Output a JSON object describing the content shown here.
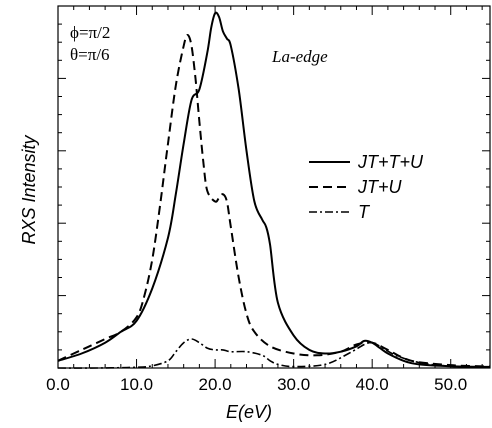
{
  "chart_data": {
    "type": "line",
    "xlabel": "E(eV)",
    "ylabel": "RXS Intensity",
    "xlim": [
      0,
      55
    ],
    "ylim": [
      0,
      1.0
    ],
    "x_tick_labels": [
      "0.0",
      "10.0",
      "20.0",
      "30.0",
      "40.0",
      "50.0"
    ],
    "x_ticks": [
      0,
      10,
      20,
      30,
      40,
      50
    ],
    "y_tick_labels_shown": false,
    "grid": false,
    "legend_position": "right",
    "annotations": {
      "phi": "ϕ=π/2",
      "theta": "θ=π/6",
      "edge": "La-edge"
    },
    "series": [
      {
        "name": "JT+T+U",
        "style": "solid",
        "x": [
          0,
          3,
          6,
          8,
          10,
          12,
          14,
          15,
          16,
          17,
          18,
          19,
          19.5,
          20,
          20.5,
          21,
          21.5,
          22,
          23,
          24,
          25,
          26,
          26.5,
          27,
          28,
          30,
          32,
          34,
          36,
          38,
          39,
          40,
          41,
          42,
          44,
          46,
          50,
          55
        ],
        "y": [
          0.02,
          0.04,
          0.07,
          0.1,
          0.13,
          0.22,
          0.36,
          0.48,
          0.62,
          0.74,
          0.77,
          0.87,
          0.94,
          0.98,
          0.97,
          0.93,
          0.91,
          0.89,
          0.77,
          0.6,
          0.46,
          0.41,
          0.39,
          0.34,
          0.18,
          0.09,
          0.05,
          0.04,
          0.045,
          0.06,
          0.075,
          0.07,
          0.055,
          0.04,
          0.02,
          0.01,
          0.005,
          0.003
        ]
      },
      {
        "name": "JT+U",
        "style": "dashed",
        "x": [
          0,
          3,
          6,
          8,
          10,
          11,
          12,
          13,
          14,
          15,
          16,
          16.5,
          17,
          17.5,
          18,
          18.5,
          19,
          20,
          20.5,
          21,
          21.5,
          22,
          23,
          24,
          25,
          27,
          30,
          33,
          36,
          38,
          40,
          42,
          45,
          50,
          55
        ],
        "y": [
          0.02,
          0.05,
          0.08,
          0.1,
          0.14,
          0.2,
          0.3,
          0.45,
          0.62,
          0.78,
          0.89,
          0.92,
          0.89,
          0.8,
          0.68,
          0.57,
          0.49,
          0.46,
          0.47,
          0.48,
          0.46,
          0.39,
          0.25,
          0.15,
          0.1,
          0.06,
          0.04,
          0.035,
          0.045,
          0.065,
          0.07,
          0.05,
          0.02,
          0.008,
          0.004
        ]
      },
      {
        "name": "T",
        "style": "dashdot",
        "x": [
          0,
          5,
          10,
          12,
          14,
          15,
          16,
          17,
          18,
          19,
          20,
          21,
          22,
          24,
          26,
          27,
          28,
          30,
          34,
          37,
          39,
          40,
          41,
          43,
          46,
          50,
          55
        ],
        "y": [
          0.0,
          0.0,
          0.002,
          0.006,
          0.02,
          0.045,
          0.07,
          0.08,
          0.07,
          0.055,
          0.05,
          0.05,
          0.045,
          0.045,
          0.035,
          0.02,
          0.01,
          0.004,
          0.01,
          0.04,
          0.065,
          0.07,
          0.06,
          0.035,
          0.015,
          0.005,
          0.002
        ]
      }
    ]
  }
}
